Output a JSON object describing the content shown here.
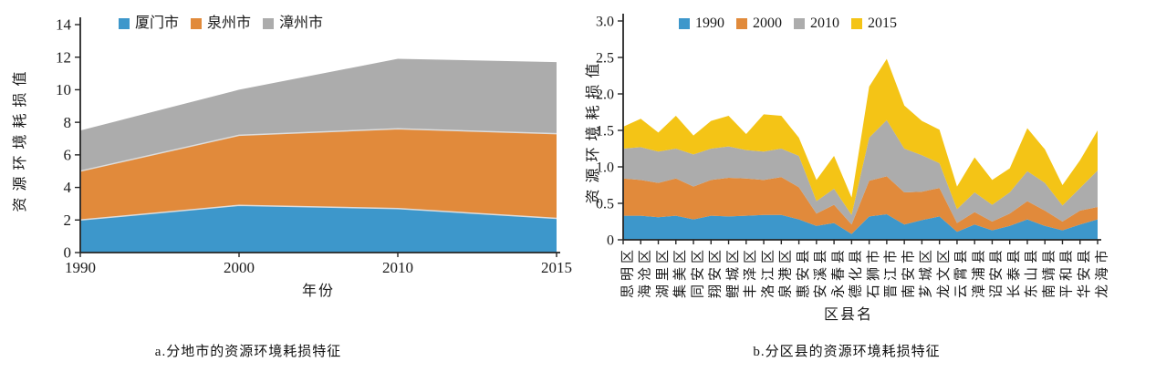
{
  "colors": {
    "blue": "#3D97CB",
    "orange": "#E18A3B",
    "gray": "#ACACAC",
    "yellow": "#F4C416",
    "axis": "#262626",
    "separator": "#DDDDDD"
  },
  "captions": {
    "left": "a.分地市的资源环境耗损特征",
    "right": "b.分区县的资源环境耗损特征"
  },
  "chart_data": [
    {
      "id": "cities",
      "type": "area",
      "stacked": true,
      "title": "",
      "xlabel": "年份",
      "ylabel": "资源环境耗损值",
      "categories": [
        "1990",
        "2000",
        "2010",
        "2015"
      ],
      "ylim": [
        0,
        14
      ],
      "yticks": [
        0,
        2,
        4,
        6,
        8,
        10,
        12,
        14
      ],
      "ytick_labels": [
        "0",
        "2",
        "4",
        "6",
        "8",
        "10",
        "12",
        "14"
      ],
      "grid": false,
      "legend_position": "top",
      "series": [
        {
          "name": "厦门市",
          "color_key": "blue",
          "values": [
            2.0,
            2.9,
            2.7,
            2.1
          ]
        },
        {
          "name": "泉州市",
          "color_key": "orange",
          "values": [
            3.0,
            4.3,
            4.9,
            5.2
          ]
        },
        {
          "name": "漳州市",
          "color_key": "gray",
          "values": [
            2.5,
            2.8,
            4.3,
            4.4
          ]
        }
      ]
    },
    {
      "id": "districts",
      "type": "area",
      "stacked": true,
      "title": "",
      "xlabel": "区县名",
      "ylabel": "资源环境耗损值",
      "categories": [
        "思明区",
        "海沧区",
        "湖里区",
        "集美区",
        "同安区",
        "翔安区",
        "鲤城区",
        "丰泽区",
        "洛江区",
        "泉港区",
        "惠安县",
        "安溪县",
        "永春县",
        "德化县",
        "石狮市",
        "晋江市",
        "南安市",
        "芗城区",
        "龙文区",
        "云霄县",
        "漳浦县",
        "诏安县",
        "长泰县",
        "东山县",
        "南靖县",
        "平和县",
        "华安县",
        "龙海市"
      ],
      "ylim": [
        0,
        3
      ],
      "yticks": [
        0,
        0.5,
        1,
        1.5,
        2,
        2.5,
        3
      ],
      "ytick_labels": [
        "0",
        "0.5",
        "1.0",
        "1.5",
        "2.0",
        "2.5",
        "3.0"
      ],
      "grid": false,
      "legend_position": "top",
      "series": [
        {
          "name": "1990",
          "color_key": "blue",
          "values": [
            0.33,
            0.33,
            0.31,
            0.33,
            0.28,
            0.33,
            0.32,
            0.33,
            0.34,
            0.34,
            0.28,
            0.19,
            0.23,
            0.08,
            0.32,
            0.35,
            0.21,
            0.27,
            0.32,
            0.11,
            0.21,
            0.13,
            0.19,
            0.28,
            0.19,
            0.13,
            0.21,
            0.28
          ]
        },
        {
          "name": "2000",
          "color_key": "orange",
          "values": [
            0.51,
            0.49,
            0.47,
            0.51,
            0.45,
            0.49,
            0.53,
            0.51,
            0.48,
            0.52,
            0.44,
            0.17,
            0.25,
            0.13,
            0.49,
            0.52,
            0.44,
            0.39,
            0.39,
            0.12,
            0.17,
            0.12,
            0.17,
            0.25,
            0.21,
            0.12,
            0.19,
            0.17
          ]
        },
        {
          "name": "2010",
          "color_key": "gray",
          "values": [
            0.41,
            0.45,
            0.43,
            0.41,
            0.44,
            0.43,
            0.43,
            0.39,
            0.39,
            0.39,
            0.43,
            0.17,
            0.22,
            0.13,
            0.59,
            0.77,
            0.6,
            0.5,
            0.34,
            0.19,
            0.27,
            0.23,
            0.29,
            0.41,
            0.38,
            0.22,
            0.31,
            0.5
          ]
        },
        {
          "name": "2015",
          "color_key": "yellow",
          "values": [
            0.3,
            0.39,
            0.26,
            0.45,
            0.26,
            0.38,
            0.42,
            0.22,
            0.51,
            0.45,
            0.25,
            0.29,
            0.45,
            0.24,
            0.7,
            0.84,
            0.59,
            0.47,
            0.46,
            0.31,
            0.48,
            0.34,
            0.33,
            0.59,
            0.46,
            0.28,
            0.38,
            0.55
          ]
        }
      ]
    }
  ]
}
